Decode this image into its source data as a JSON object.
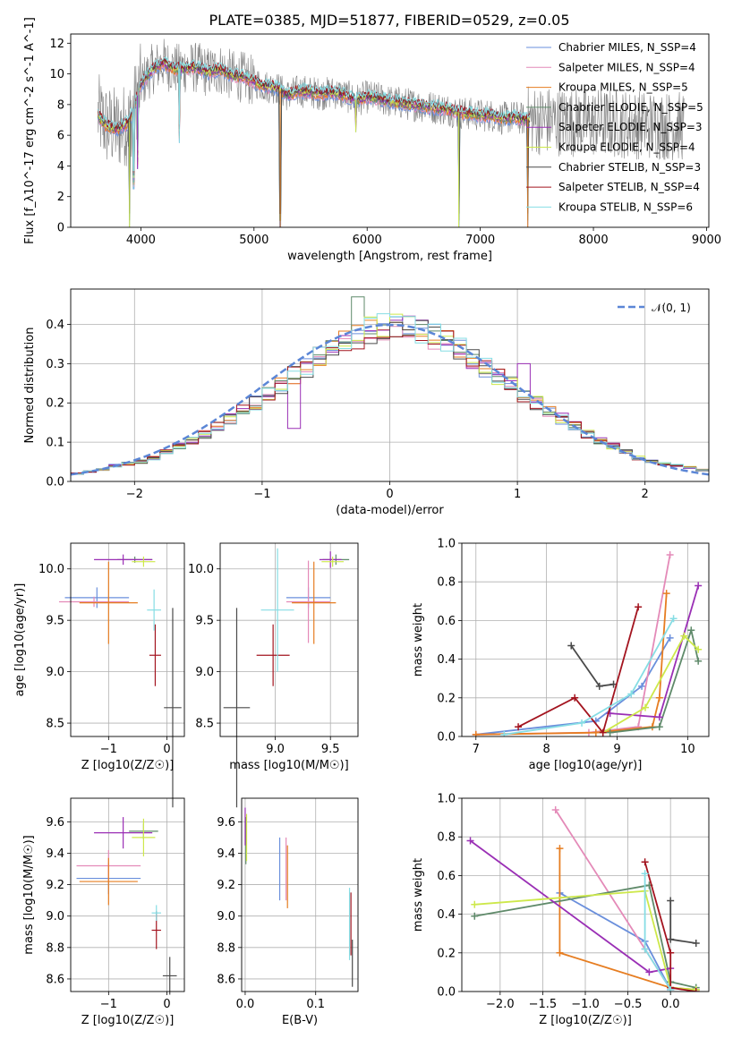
{
  "title": "PLATE=0385, MJD=51877, FIBERID=0529, z=0.05",
  "colors": {
    "blue": "#6a8fdc",
    "pink": "#e48ab8",
    "orange": "#e67d21",
    "green": "#5f8a6a",
    "purple": "#9a2fb5",
    "yellow": "#cde84a",
    "black": "#4a4a4a",
    "red": "#a3141f",
    "cyan": "#86dde4",
    "data_gray": "#808080"
  },
  "chart_data": [
    {
      "id": "spectrum",
      "type": "line",
      "xlabel": "wavelength [Angstrom, rest frame]",
      "ylabel": "Flux [f_λ10^-17 erg cm^-2 s^-1 A^-1]",
      "xlim": [
        3380,
        9020
      ],
      "ylim": [
        0,
        12.6
      ],
      "xticks": [
        4000,
        5000,
        6000,
        7000,
        8000,
        9000
      ],
      "yticks": [
        0,
        2,
        4,
        6,
        8,
        10,
        12
      ],
      "legend_position": "top-right",
      "series": [
        {
          "name": "Chabrier MILES, N_SSP=4",
          "color": "blue"
        },
        {
          "name": "Salpeter MILES, N_SSP=4",
          "color": "pink"
        },
        {
          "name": "Kroupa MILES, N_SSP=5",
          "color": "orange"
        },
        {
          "name": "Chabrier ELODIE, N_SSP=5",
          "color": "green"
        },
        {
          "name": "Salpeter ELODIE, N_SSP=3",
          "color": "purple"
        },
        {
          "name": "Kroupa ELODIE, N_SSP=4",
          "color": "yellow"
        },
        {
          "name": "Chabrier STELIB, N_SSP=3",
          "color": "black"
        },
        {
          "name": "Salpeter STELIB, N_SSP=4",
          "color": "red"
        },
        {
          "name": "Kroupa STELIB, N_SSP=6",
          "color": "cyan"
        }
      ],
      "continuum": {
        "x": [
          3620,
          3700,
          3800,
          3900,
          4000,
          4100,
          4200,
          4300,
          4400,
          4500,
          4600,
          4700,
          4800,
          4900,
          5000,
          5100,
          5200,
          5300,
          5400,
          5500,
          5600,
          5700,
          5800,
          5900,
          6000,
          6100,
          6200,
          6300,
          6400,
          6500,
          6600,
          6700,
          6800,
          6900,
          7000,
          7100,
          7200,
          7300,
          7400
        ],
        "y": [
          7.3,
          6.6,
          6.4,
          6.9,
          9.3,
          10.3,
          10.7,
          10.3,
          10.4,
          10.4,
          10.1,
          10.3,
          9.9,
          9.8,
          9.5,
          9.2,
          9.1,
          8.6,
          8.9,
          8.8,
          8.7,
          8.8,
          8.6,
          8.3,
          8.5,
          8.4,
          8.2,
          8.1,
          8.0,
          7.9,
          7.8,
          7.7,
          7.5,
          7.4,
          7.3,
          7.3,
          7.1,
          7.2,
          7.0
        ]
      },
      "absorption_dips": [
        {
          "x": 3900,
          "y": 0.0
        },
        {
          "x": 3935,
          "y": 2.5
        },
        {
          "x": 3970,
          "y": 3.8
        },
        {
          "x": 4340,
          "y": 5.5
        },
        {
          "x": 5232,
          "y": 0.0
        },
        {
          "x": 5900,
          "y": 6.2
        },
        {
          "x": 6810,
          "y": 0.0
        },
        {
          "x": 7420,
          "y": 0.0
        }
      ]
    },
    {
      "id": "residuals",
      "type": "histogram",
      "xlabel": "(data-model)/error",
      "ylabel": "Normed distribution",
      "xlim": [
        -2.5,
        2.5
      ],
      "ylim": [
        0,
        0.49
      ],
      "xticks": [
        -2,
        -1,
        0,
        1,
        2
      ],
      "yticks": [
        0.0,
        0.1,
        0.2,
        0.3,
        0.4
      ],
      "grid": true,
      "legend": "𝒩(0, 1)",
      "legend_position": "top-right",
      "bin_width": 0.1,
      "bin_start": -2.5,
      "base": [
        0.02,
        0.025,
        0.03,
        0.04,
        0.045,
        0.05,
        0.06,
        0.075,
        0.09,
        0.105,
        0.12,
        0.14,
        0.16,
        0.18,
        0.2,
        0.22,
        0.245,
        0.27,
        0.29,
        0.315,
        0.335,
        0.355,
        0.37,
        0.385,
        0.395,
        0.4,
        0.39,
        0.385,
        0.37,
        0.355,
        0.335,
        0.315,
        0.29,
        0.265,
        0.245,
        0.22,
        0.2,
        0.18,
        0.16,
        0.14,
        0.12,
        0.105,
        0.09,
        0.075,
        0.06,
        0.05,
        0.045,
        0.04,
        0.035,
        0.03
      ]
    },
    {
      "id": "age-vs-z",
      "type": "errorbar",
      "xlabel": "Z [log10(Z/Z☉)]",
      "ylabel": "age [log10(age/yr)]",
      "xlim": [
        -1.65,
        0.3
      ],
      "ylim": [
        8.37,
        10.25
      ],
      "xticks": [
        -1,
        0
      ],
      "yticks": [
        8.5,
        9.0,
        9.5,
        10.0
      ],
      "points": [
        {
          "series": "blue",
          "x": -1.2,
          "y": 9.72,
          "xerr": 0.55,
          "yerr": 0.1
        },
        {
          "series": "pink",
          "x": -1.25,
          "y": 9.68,
          "xerr": 0.6,
          "yerr": 0.05
        },
        {
          "series": "orange",
          "x": -1.0,
          "y": 9.67,
          "xerr": 0.5,
          "yerr": 0.4
        },
        {
          "series": "green",
          "x": -0.55,
          "y": 10.09,
          "xerr": 0.3,
          "yerr": 0.03
        },
        {
          "series": "purple",
          "x": -0.75,
          "y": 10.09,
          "xerr": 0.5,
          "yerr": 0.05
        },
        {
          "series": "yellow",
          "x": -0.4,
          "y": 10.07,
          "xerr": 0.2,
          "yerr": 0.05
        },
        {
          "series": "black",
          "x": 0.1,
          "y": 8.65,
          "xerr": 0.15,
          "yerr": 0.97
        },
        {
          "series": "red",
          "x": -0.2,
          "y": 9.16,
          "xerr": 0.1,
          "yerr": 0.3
        },
        {
          "series": "cyan",
          "x": -0.22,
          "y": 9.6,
          "xerr": 0.12,
          "yerr": 0.2
        }
      ]
    },
    {
      "id": "age-vs-mass",
      "type": "errorbar",
      "xlabel": "mass [log10(M/M☉)]",
      "ylabel": "",
      "xlim": [
        8.5,
        9.75
      ],
      "ylim": [
        8.37,
        10.25
      ],
      "xticks": [
        9.0,
        9.5
      ],
      "yticks": [
        8.5,
        9.0,
        9.5,
        10.0
      ],
      "points": [
        {
          "series": "blue",
          "x": 9.3,
          "y": 9.72,
          "xerr": 0.2,
          "yerr": 0.1
        },
        {
          "series": "pink",
          "x": 9.3,
          "y": 9.68,
          "xerr": 0.2,
          "yerr": 0.4
        },
        {
          "series": "orange",
          "x": 9.35,
          "y": 9.67,
          "xerr": 0.2,
          "yerr": 0.4
        },
        {
          "series": "green",
          "x": 9.55,
          "y": 10.09,
          "xerr": 0.12,
          "yerr": 0.05
        },
        {
          "series": "purple",
          "x": 9.5,
          "y": 10.09,
          "xerr": 0.1,
          "yerr": 0.08
        },
        {
          "series": "yellow",
          "x": 9.52,
          "y": 10.07,
          "xerr": 0.1,
          "yerr": 0.05
        },
        {
          "series": "black",
          "x": 8.65,
          "y": 8.65,
          "xerr": 0.12,
          "yerr": 0.97
        },
        {
          "series": "red",
          "x": 8.98,
          "y": 9.16,
          "xerr": 0.15,
          "yerr": 0.3
        },
        {
          "series": "cyan",
          "x": 9.02,
          "y": 9.6,
          "xerr": 0.15,
          "yerr": 0.6
        }
      ]
    },
    {
      "id": "massweight-vs-age",
      "type": "line",
      "xlabel": "age [log10(age/yr)]",
      "ylabel": "mass weight",
      "xlim": [
        6.8,
        10.3
      ],
      "ylim": [
        0,
        1.0
      ],
      "xticks": [
        7,
        8,
        9,
        10
      ],
      "yticks": [
        0.0,
        0.2,
        0.4,
        0.6,
        0.8,
        1.0
      ],
      "grid": true,
      "series": [
        {
          "name": "blue",
          "x": [
            7.0,
            8.7,
            9.35,
            9.75
          ],
          "y": [
            0.01,
            0.08,
            0.26,
            0.51
          ]
        },
        {
          "name": "pink",
          "x": [
            7.0,
            8.6,
            9.3,
            9.75
          ],
          "y": [
            0.01,
            0.02,
            0.05,
            0.94
          ]
        },
        {
          "name": "orange",
          "x": [
            7.0,
            8.7,
            9.5,
            9.6,
            9.7
          ],
          "y": [
            0.01,
            0.02,
            0.05,
            0.2,
            0.74
          ]
        },
        {
          "name": "green",
          "x": [
            8.9,
            9.6,
            10.05,
            10.15
          ],
          "y": [
            0.02,
            0.05,
            0.55,
            0.39
          ]
        },
        {
          "name": "purple",
          "x": [
            8.9,
            9.6,
            10.15
          ],
          "y": [
            0.12,
            0.1,
            0.78
          ]
        },
        {
          "name": "yellow",
          "x": [
            8.8,
            9.4,
            9.95,
            10.15
          ],
          "y": [
            0.02,
            0.15,
            0.52,
            0.45
          ]
        },
        {
          "name": "black",
          "x": [
            8.35,
            8.75,
            8.95
          ],
          "y": [
            0.47,
            0.26,
            0.27
          ]
        },
        {
          "name": "red",
          "x": [
            7.6,
            8.4,
            8.8,
            9.3
          ],
          "y": [
            0.05,
            0.2,
            0.02,
            0.67
          ]
        },
        {
          "name": "cyan",
          "x": [
            7.4,
            8.5,
            9.2,
            9.8
          ],
          "y": [
            0.01,
            0.07,
            0.22,
            0.61
          ]
        }
      ]
    },
    {
      "id": "mass-vs-z",
      "type": "errorbar",
      "xlabel": "Z [log10(Z/Z☉)]",
      "ylabel": "mass [log10(M/M☉)]",
      "xlim": [
        -1.65,
        0.3
      ],
      "ylim": [
        8.52,
        9.75
      ],
      "xticks": [
        -1,
        0
      ],
      "yticks": [
        8.6,
        8.8,
        9.0,
        9.2,
        9.4,
        9.6
      ],
      "points": [
        {
          "series": "blue",
          "x": -1.0,
          "y": 9.24,
          "xerr": 0.55,
          "yerr": 0.1
        },
        {
          "series": "pink",
          "x": -1.0,
          "y": 9.32,
          "xerr": 0.55,
          "yerr": 0.1
        },
        {
          "series": "orange",
          "x": -1.0,
          "y": 9.22,
          "xerr": 0.5,
          "yerr": 0.15
        },
        {
          "series": "green",
          "x": -0.4,
          "y": 9.54,
          "xerr": 0.25,
          "yerr": 0.05
        },
        {
          "series": "purple",
          "x": -0.75,
          "y": 9.53,
          "xerr": 0.5,
          "yerr": 0.1
        },
        {
          "series": "yellow",
          "x": -0.4,
          "y": 9.5,
          "xerr": 0.2,
          "yerr": 0.12
        },
        {
          "series": "black",
          "x": 0.05,
          "y": 8.62,
          "xerr": 0.12,
          "yerr": 0.12
        },
        {
          "series": "red",
          "x": -0.18,
          "y": 8.91,
          "xerr": 0.08,
          "yerr": 0.12
        },
        {
          "series": "cyan",
          "x": -0.18,
          "y": 9.02,
          "xerr": 0.08,
          "yerr": 0.05
        }
      ]
    },
    {
      "id": "mass-vs-ebv",
      "type": "errorbar",
      "xlabel": "E(B-V)",
      "ylabel": "",
      "xlim": [
        -0.005,
        0.16
      ],
      "ylim": [
        8.52,
        9.75
      ],
      "xticks": [
        0.0,
        0.1
      ],
      "yticks": [
        8.6,
        8.8,
        9.0,
        9.2,
        9.4,
        9.6
      ],
      "points": [
        {
          "series": "blue",
          "x": 0.049,
          "y": 9.3,
          "xerr": 0,
          "yerr": 0.2
        },
        {
          "series": "pink",
          "x": 0.058,
          "y": 9.3,
          "xerr": 0,
          "yerr": 0.2
        },
        {
          "series": "orange",
          "x": 0.06,
          "y": 9.25,
          "xerr": 0,
          "yerr": 0.2
        },
        {
          "series": "green",
          "x": 0.001,
          "y": 9.48,
          "xerr": 0,
          "yerr": 0.15
        },
        {
          "series": "purple",
          "x": 0.0,
          "y": 9.57,
          "xerr": 0,
          "yerr": 0.12
        },
        {
          "series": "yellow",
          "x": 0.002,
          "y": 9.5,
          "xerr": 0,
          "yerr": 0.15
        },
        {
          "series": "black",
          "x": 0.152,
          "y": 8.7,
          "xerr": 0,
          "yerr": 0.15
        },
        {
          "series": "red",
          "x": 0.15,
          "y": 8.95,
          "xerr": 0,
          "yerr": 0.2
        },
        {
          "series": "cyan",
          "x": 0.148,
          "y": 8.95,
          "xerr": 0,
          "yerr": 0.23
        }
      ]
    },
    {
      "id": "massweight-vs-z",
      "type": "line",
      "xlabel": "Z [log10(Z/Z☉)]",
      "ylabel": "mass weight",
      "xlim": [
        -2.45,
        0.45
      ],
      "ylim": [
        0,
        1.0
      ],
      "xticks": [
        -2.0,
        -1.5,
        -1.0,
        -0.5,
        0.0
      ],
      "yticks": [
        0.0,
        0.2,
        0.4,
        0.6,
        0.8,
        1.0
      ],
      "grid": true,
      "series": [
        {
          "name": "blue",
          "x": [
            -1.3,
            -0.3,
            0.0
          ],
          "y": [
            0.51,
            0.26,
            0.01
          ]
        },
        {
          "name": "pink",
          "x": [
            -1.35,
            -0.3,
            0.0
          ],
          "y": [
            0.94,
            0.22,
            0.01
          ]
        },
        {
          "name": "orange",
          "x": [
            -1.3,
            -1.3,
            0.0,
            0.3
          ],
          "y": [
            0.74,
            0.2,
            0.02,
            0.01
          ]
        },
        {
          "name": "green",
          "x": [
            -2.3,
            -0.25,
            0.0,
            0.3
          ],
          "y": [
            0.39,
            0.55,
            0.05,
            0.02
          ]
        },
        {
          "name": "purple",
          "x": [
            -2.35,
            -0.25,
            0.0
          ],
          "y": [
            0.78,
            0.1,
            0.12
          ]
        },
        {
          "name": "yellow",
          "x": [
            -2.3,
            -0.3,
            0.0,
            0.3
          ],
          "y": [
            0.45,
            0.52,
            0.02,
            0.01
          ]
        },
        {
          "name": "black",
          "x": [
            0.0,
            0.0,
            0.3
          ],
          "y": [
            0.47,
            0.27,
            0.25
          ]
        },
        {
          "name": "red",
          "x": [
            -0.3,
            0.0,
            0.0,
            0.3
          ],
          "y": [
            0.67,
            0.2,
            0.02,
            0.0
          ]
        },
        {
          "name": "cyan",
          "x": [
            -0.3,
            -0.3,
            0.0
          ],
          "y": [
            0.61,
            0.22,
            0.01
          ]
        }
      ]
    }
  ]
}
